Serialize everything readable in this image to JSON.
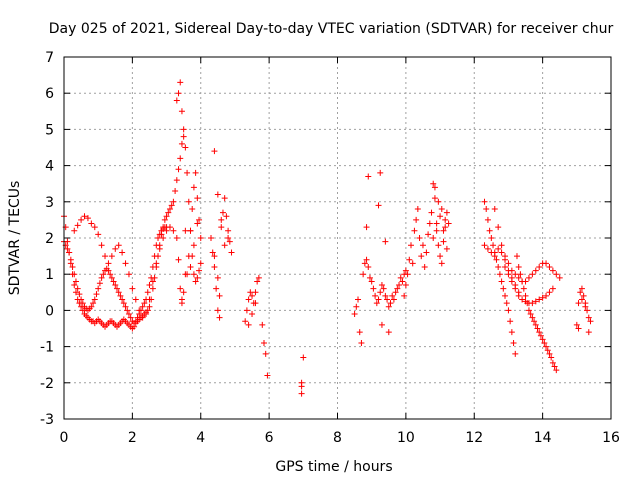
{
  "chart_data": {
    "type": "scatter",
    "title": "Day 025 of 2021, Sidereal Day-to-day VTEC variation (SDTVAR) for receiver chur",
    "xlabel": "GPS time / hours",
    "ylabel": "SDTVAR / TECUs",
    "xlim": [
      0,
      16
    ],
    "ylim": [
      -3,
      7
    ],
    "xticks": [
      0,
      2,
      4,
      6,
      8,
      10,
      12,
      14,
      16
    ],
    "yticks": [
      -3,
      -2,
      -1,
      0,
      1,
      2,
      3,
      4,
      5,
      6,
      7
    ],
    "grid": true,
    "marker": "+",
    "color": "#ff0000",
    "series": [
      {
        "name": "SDTVAR",
        "x": [
          0.0,
          0.05,
          0.1,
          0.15,
          0.2,
          0.25,
          0.3,
          0.35,
          0.4,
          0.45,
          0.5,
          0.55,
          0.6,
          0.65,
          0.7,
          0.75,
          0.8,
          0.85,
          0.9,
          0.95,
          1.0,
          1.05,
          1.1,
          1.15,
          1.2,
          1.25,
          1.3,
          1.35,
          1.4,
          1.45,
          1.5,
          1.55,
          1.6,
          1.65,
          1.7,
          1.75,
          1.8,
          1.85,
          1.9,
          1.95,
          2.0,
          2.05,
          2.1,
          2.15,
          2.2,
          2.25,
          2.3,
          2.35,
          2.4,
          2.45,
          2.5,
          2.55,
          2.6,
          2.65,
          2.7,
          2.75,
          2.8,
          2.85,
          2.9,
          2.95,
          3.0,
          3.05,
          3.1,
          3.15,
          3.2,
          3.25,
          3.3,
          3.35,
          3.4,
          3.45,
          3.5,
          3.55,
          3.6,
          3.65,
          3.7,
          3.75,
          3.8,
          3.85,
          3.9,
          3.95,
          4.0,
          0.0,
          0.05,
          0.1,
          0.15,
          0.2,
          0.25,
          0.3,
          0.35,
          0.4,
          0.45,
          0.5,
          0.55,
          0.6,
          0.65,
          0.7,
          0.75,
          0.8,
          0.85,
          0.9,
          0.95,
          1.0,
          1.05,
          1.1,
          1.15,
          1.2,
          1.25,
          1.3,
          1.35,
          1.4,
          1.45,
          1.5,
          1.55,
          1.6,
          1.65,
          1.7,
          1.75,
          1.8,
          1.85,
          1.9,
          1.95,
          2.0,
          2.05,
          2.1,
          2.15,
          2.2,
          2.25,
          2.3,
          2.35,
          2.4,
          2.45,
          2.5,
          2.55,
          2.6,
          2.65,
          2.7,
          2.75,
          2.8,
          2.85,
          2.9,
          2.95,
          3.0,
          0.3,
          0.4,
          0.5,
          0.6,
          0.7,
          0.8,
          0.9,
          1.0,
          1.1,
          1.2,
          1.3,
          1.4,
          1.5,
          1.6,
          1.7,
          1.8,
          1.9,
          2.0,
          2.1,
          2.2,
          2.3,
          2.4,
          2.5,
          2.6,
          2.7,
          2.8,
          2.9,
          3.0,
          3.1,
          3.2,
          3.3,
          3.3,
          3.35,
          3.4,
          3.45,
          3.5,
          3.55,
          3.5,
          3.45,
          3.4,
          3.35,
          3.45,
          3.55,
          3.6,
          3.65,
          3.7,
          3.75,
          3.8,
          3.85,
          3.9,
          3.95,
          4.0,
          3.9,
          3.8,
          3.7,
          4.3,
          4.35,
          4.4,
          4.45,
          4.5,
          4.55,
          4.6,
          4.65,
          4.7,
          4.75,
          4.8,
          4.85,
          4.9,
          4.4,
          4.5,
          4.6,
          4.7,
          4.8,
          4.4,
          4.5,
          4.55,
          5.3,
          5.35,
          5.4,
          5.45,
          5.5,
          5.55,
          5.6,
          5.65,
          5.7,
          5.4,
          5.5,
          5.6,
          5.8,
          5.85,
          5.9,
          5.95,
          6.95,
          6.95,
          6.95,
          7.0,
          8.5,
          8.55,
          8.6,
          8.65,
          8.7,
          8.75,
          8.8,
          8.85,
          8.9,
          8.95,
          9.0,
          9.05,
          9.1,
          9.15,
          9.2,
          9.25,
          9.3,
          9.35,
          9.4,
          9.45,
          9.5,
          9.55,
          9.6,
          9.65,
          9.7,
          9.75,
          9.8,
          9.85,
          9.9,
          9.95,
          10.0,
          8.9,
          9.2,
          9.25,
          8.85,
          9.4,
          9.5,
          9.3,
          9.95,
          10.0,
          10.05,
          10.1,
          10.15,
          10.2,
          10.25,
          10.3,
          10.35,
          10.4,
          10.45,
          10.5,
          10.55,
          10.6,
          10.65,
          10.7,
          10.75,
          10.8,
          10.85,
          10.9,
          10.95,
          11.0,
          11.05,
          11.1,
          11.15,
          11.2,
          11.25,
          10.8,
          10.9,
          11.0,
          11.1,
          11.2,
          10.85,
          10.95,
          11.05,
          11.15,
          12.3,
          12.35,
          12.4,
          12.45,
          12.5,
          12.55,
          12.6,
          12.65,
          12.7,
          12.75,
          12.8,
          12.85,
          12.9,
          12.95,
          13.0,
          13.05,
          13.1,
          13.15,
          13.2,
          13.25,
          13.3,
          13.35,
          13.4,
          13.45,
          13.5,
          13.55,
          13.6,
          13.65,
          13.7,
          13.75,
          13.8,
          13.85,
          13.9,
          13.95,
          14.0,
          14.05,
          14.1,
          14.15,
          14.2,
          14.25,
          14.3,
          14.35,
          14.4,
          12.3,
          12.4,
          12.5,
          12.6,
          12.7,
          12.8,
          12.9,
          13.0,
          13.1,
          13.2,
          13.3,
          13.4,
          13.5,
          13.6,
          13.7,
          13.8,
          13.9,
          14.0,
          14.1,
          14.2,
          14.3,
          14.4,
          14.5,
          12.6,
          12.7,
          12.8,
          12.9,
          13.0,
          13.1,
          13.2,
          13.3,
          12.9,
          13.0,
          13.1,
          13.2,
          13.3,
          13.4,
          13.5,
          13.6,
          13.7,
          13.8,
          13.9,
          14.0,
          14.1,
          14.2,
          14.3,
          15.0,
          15.05,
          15.1,
          15.15,
          15.2,
          15.25,
          15.3,
          15.35,
          15.4,
          15.05,
          15.15,
          15.25,
          15.35
        ],
        "y": [
          2.6,
          2.3,
          1.9,
          1.6,
          1.3,
          1.0,
          0.7,
          0.5,
          0.3,
          0.2,
          0.1,
          0.0,
          -0.1,
          -0.15,
          -0.2,
          -0.25,
          -0.3,
          -0.3,
          -0.35,
          -0.3,
          -0.25,
          -0.3,
          -0.35,
          -0.4,
          -0.45,
          -0.4,
          -0.35,
          -0.3,
          -0.3,
          -0.35,
          -0.4,
          -0.45,
          -0.4,
          -0.35,
          -0.3,
          -0.25,
          -0.3,
          -0.35,
          -0.4,
          -0.45,
          -0.5,
          -0.45,
          -0.35,
          -0.3,
          -0.25,
          -0.2,
          -0.15,
          -0.1,
          -0.05,
          0.0,
          0.1,
          0.3,
          0.6,
          0.9,
          1.2,
          1.5,
          1.8,
          2.1,
          2.3,
          2.5,
          2.6,
          2.7,
          2.8,
          2.9,
          3.0,
          3.3,
          3.6,
          3.9,
          4.2,
          4.6,
          5.0,
          4.5,
          3.8,
          3.0,
          2.2,
          1.5,
          1.0,
          0.8,
          0.9,
          1.1,
          1.3,
          1.9,
          1.8,
          1.7,
          1.6,
          1.4,
          1.2,
          1.0,
          0.8,
          0.6,
          0.45,
          0.3,
          0.2,
          0.1,
          0.05,
          0.0,
          0.05,
          0.1,
          0.2,
          0.3,
          0.45,
          0.6,
          0.75,
          0.9,
          1.0,
          1.1,
          1.15,
          1.1,
          1.0,
          0.9,
          0.8,
          0.7,
          0.6,
          0.5,
          0.4,
          0.3,
          0.2,
          0.1,
          0.0,
          -0.1,
          -0.2,
          -0.3,
          -0.35,
          -0.3,
          -0.2,
          -0.1,
          0.0,
          0.1,
          0.2,
          0.3,
          0.5,
          0.7,
          0.9,
          1.2,
          1.5,
          1.8,
          2.0,
          2.1,
          2.2,
          2.25,
          2.3,
          2.3,
          2.2,
          2.35,
          2.5,
          2.6,
          2.55,
          2.4,
          2.3,
          2.1,
          1.8,
          1.5,
          1.3,
          1.5,
          1.7,
          1.8,
          1.6,
          1.3,
          1.0,
          0.6,
          0.3,
          0.0,
          -0.2,
          -0.1,
          0.3,
          0.8,
          1.3,
          1.7,
          2.0,
          2.2,
          2.3,
          2.2,
          2.0,
          5.8,
          6.0,
          6.3,
          5.5,
          4.8,
          1.0,
          0.5,
          0.2,
          0.6,
          1.4,
          0.3,
          2.2,
          1.0,
          1.5,
          2.2,
          2.8,
          3.4,
          3.8,
          3.1,
          2.5,
          2.0,
          2.4,
          1.8,
          1.2,
          2.0,
          1.6,
          1.2,
          0.6,
          0.0,
          -0.2,
          2.3,
          2.7,
          3.1,
          2.6,
          2.2,
          1.9,
          1.6,
          4.4,
          3.2,
          2.5,
          1.8,
          2.0,
          1.5,
          0.9,
          0.4,
          -0.3,
          0.0,
          0.3,
          0.5,
          0.4,
          0.2,
          0.5,
          0.8,
          0.9,
          -0.4,
          -0.1,
          0.2,
          -0.4,
          -0.9,
          -1.2,
          -1.8,
          -2.3,
          -2.0,
          -2.1,
          -1.3,
          -0.1,
          0.1,
          0.3,
          -0.6,
          -0.9,
          1.0,
          1.3,
          1.4,
          1.2,
          0.9,
          0.8,
          0.6,
          0.4,
          0.2,
          0.3,
          0.5,
          0.7,
          0.6,
          0.4,
          0.3,
          0.1,
          0.2,
          0.4,
          0.3,
          0.5,
          0.6,
          0.7,
          0.9,
          0.8,
          1.0,
          1.1,
          3.7,
          2.9,
          3.8,
          2.3,
          1.9,
          -0.6,
          -0.4,
          0.4,
          0.7,
          1.0,
          1.4,
          1.8,
          1.3,
          2.2,
          2.5,
          2.8,
          2.0,
          1.5,
          1.8,
          1.2,
          1.6,
          2.1,
          2.4,
          2.7,
          3.5,
          3.1,
          2.2,
          1.8,
          1.5,
          1.3,
          1.9,
          2.3,
          2.7,
          2.4,
          2.0,
          2.4,
          2.6,
          2.2,
          1.7,
          3.4,
          3.0,
          2.8,
          2.5,
          3.0,
          2.8,
          2.5,
          2.2,
          2.0,
          1.8,
          1.6,
          1.4,
          1.2,
          1.0,
          0.8,
          0.6,
          0.4,
          0.2,
          0.0,
          -0.3,
          -0.6,
          -0.9,
          -1.2,
          1.5,
          1.2,
          1.0,
          0.8,
          0.6,
          0.4,
          0.2,
          0.0,
          -0.1,
          -0.2,
          -0.3,
          -0.4,
          -0.5,
          -0.6,
          -0.7,
          -0.8,
          -0.9,
          -1.0,
          -1.1,
          -1.2,
          -1.3,
          -1.45,
          -1.55,
          -1.65,
          1.8,
          1.7,
          1.6,
          1.5,
          1.7,
          1.6,
          1.5,
          1.3,
          1.1,
          1.0,
          0.9,
          0.8,
          0.8,
          0.9,
          1.0,
          1.1,
          1.2,
          1.3,
          1.3,
          1.2,
          1.1,
          1.0,
          0.9,
          2.8,
          2.3,
          1.8,
          1.4,
          1.1,
          0.9,
          0.7,
          0.5,
          1.2,
          1.0,
          0.8,
          0.6,
          0.4,
          0.3,
          0.25,
          0.2,
          0.2,
          0.25,
          0.3,
          0.35,
          0.4,
          0.5,
          0.6,
          -0.4,
          0.2,
          0.5,
          0.6,
          0.4,
          0.2,
          0.0,
          -0.2,
          -0.3,
          -0.5,
          0.3,
          0.1,
          -0.6
        ]
      }
    ]
  }
}
